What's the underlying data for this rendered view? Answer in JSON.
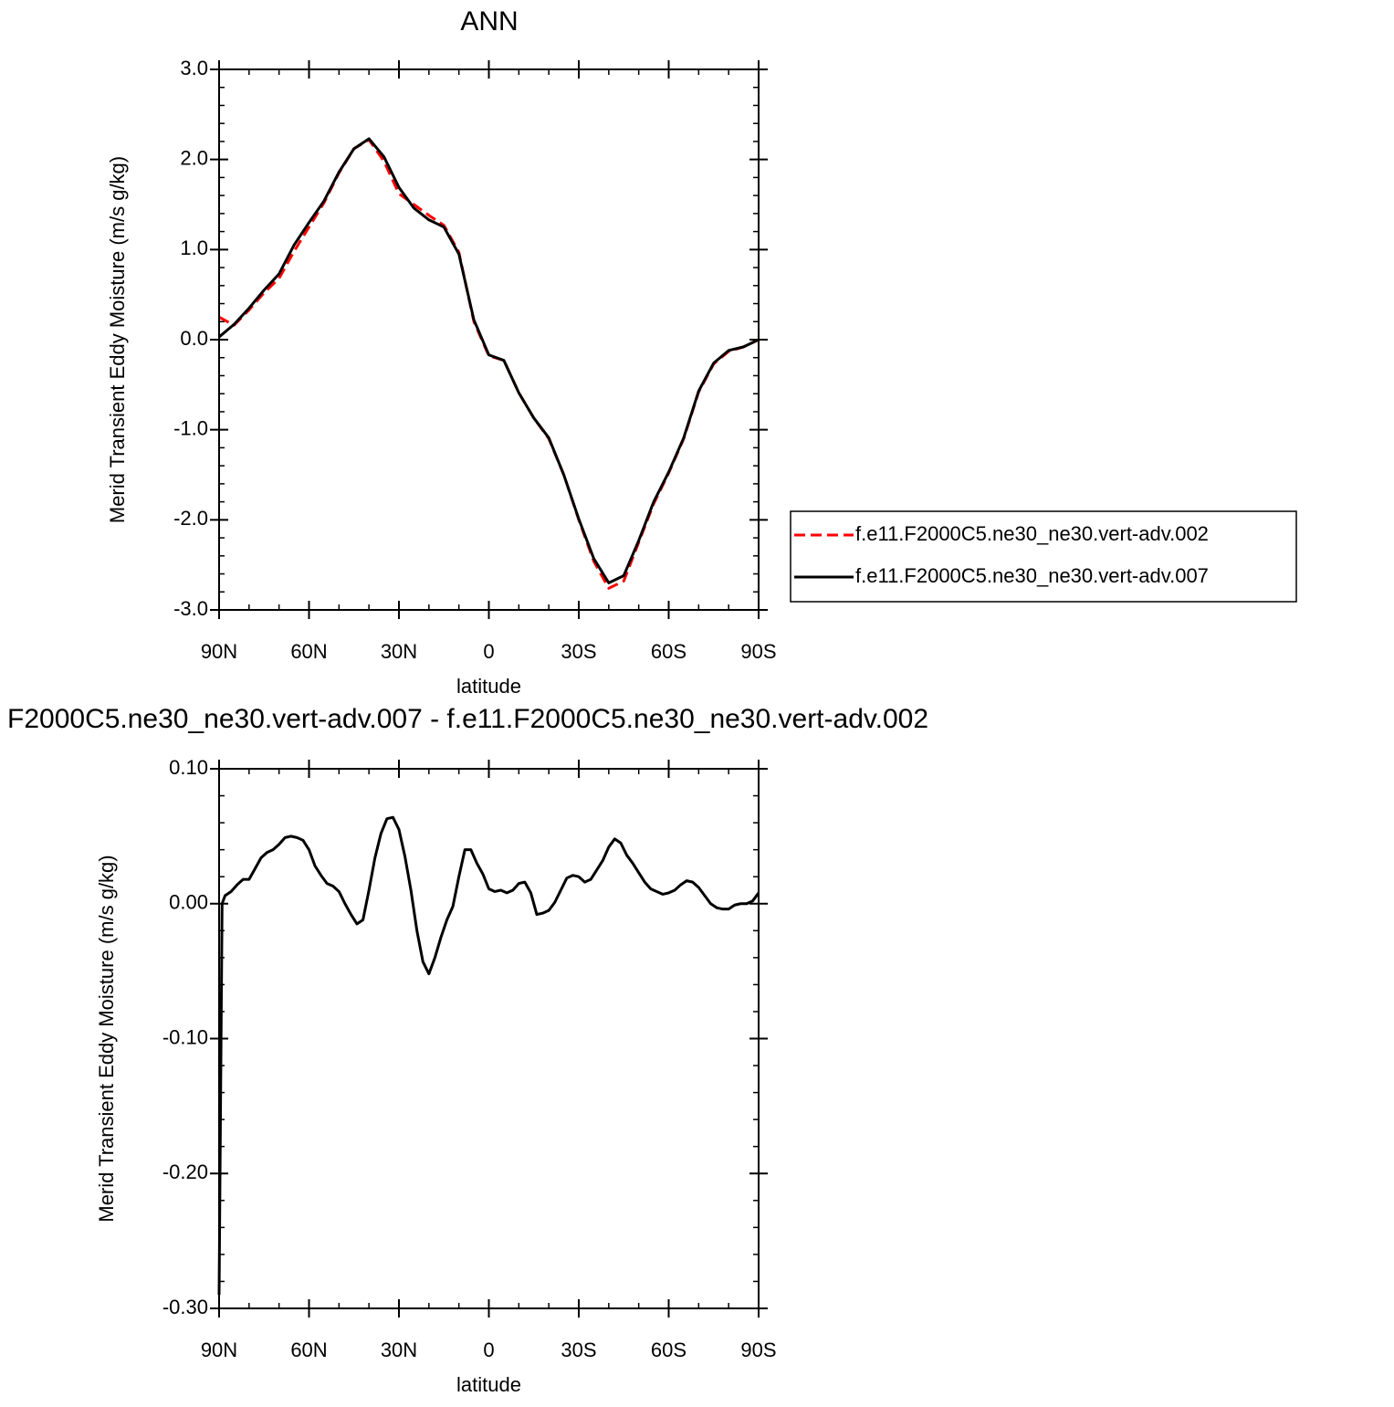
{
  "chart_data": [
    {
      "type": "line",
      "title": "ANN",
      "xlabel": "latitude",
      "ylabel": "Merid Transient Eddy Moisture (m/s g/kg)",
      "x": [
        90,
        85,
        80,
        75,
        70,
        65,
        60,
        55,
        50,
        45,
        40,
        35,
        30,
        25,
        20,
        15,
        10,
        5,
        0,
        -5,
        -10,
        -15,
        -20,
        -25,
        -30,
        -35,
        -40,
        -45,
        -50,
        -55,
        -60,
        -65,
        -70,
        -75,
        -80,
        -85,
        -90
      ],
      "series": [
        {
          "name": "f.e11.F2000C5.ne30_ne30.vert-adv.002",
          "color": "#ff0000",
          "dashed": true,
          "values": [
            0.25,
            0.16,
            0.33,
            0.52,
            0.68,
            0.98,
            1.25,
            1.52,
            1.85,
            2.12,
            2.22,
            1.98,
            1.62,
            1.5,
            1.38,
            1.27,
            0.97,
            0.2,
            -0.18,
            -0.23,
            -0.59,
            -0.87,
            -1.1,
            -1.5,
            -2.0,
            -2.46,
            -2.76,
            -2.68,
            -2.25,
            -1.82,
            -1.48,
            -1.1,
            -0.58,
            -0.27,
            -0.13,
            -0.08,
            0.0
          ]
        },
        {
          "name": "f.e11.F2000C5.ne30_ne30.vert-adv.007",
          "color": "#000000",
          "dashed": false,
          "values": [
            0.03,
            0.17,
            0.35,
            0.55,
            0.73,
            1.05,
            1.3,
            1.54,
            1.86,
            2.12,
            2.23,
            2.03,
            1.69,
            1.46,
            1.33,
            1.25,
            0.95,
            0.22,
            -0.17,
            -0.23,
            -0.59,
            -0.87,
            -1.09,
            -1.5,
            -1.99,
            -2.43,
            -2.7,
            -2.62,
            -2.23,
            -1.8,
            -1.47,
            -1.09,
            -0.57,
            -0.26,
            -0.12,
            -0.08,
            0.0
          ]
        }
      ],
      "xlim": [
        90,
        -90
      ],
      "xticks": [
        {
          "value": 90,
          "label": "90N"
        },
        {
          "value": 60,
          "label": "60N"
        },
        {
          "value": 30,
          "label": "30N"
        },
        0,
        {
          "value": -30,
          "label": "30S"
        },
        {
          "value": -60,
          "label": "60S"
        },
        {
          "value": -90,
          "label": "90S"
        }
      ],
      "ylim": [
        -3,
        3
      ],
      "yticks": [
        {
          "value": 3,
          "label": "3.0"
        },
        {
          "value": 2,
          "label": "2.0"
        },
        {
          "value": 1,
          "label": "1.0"
        },
        {
          "value": 0,
          "label": "0.0"
        },
        {
          "value": -1,
          "label": "-1.0"
        },
        {
          "value": -2,
          "label": "-2.0"
        },
        {
          "value": -3,
          "label": "-3.0"
        }
      ],
      "legend": "right"
    },
    {
      "type": "line",
      "title": "F2000C5.ne30_ne30.vert-adv.007 - f.e11.F2000C5.ne30_ne30.vert-adv.002",
      "xlabel": "latitude",
      "ylabel": "Merid Transient Eddy Moisture (m/s g/kg)",
      "x": [
        90,
        89,
        88,
        86,
        84,
        82,
        80,
        78,
        76,
        74,
        72,
        70,
        68,
        66,
        64,
        62,
        60,
        58,
        56,
        54,
        52,
        50,
        48,
        46,
        44,
        42,
        40,
        38,
        36,
        34,
        32,
        30,
        28,
        26,
        24,
        22,
        20,
        18,
        16,
        14,
        12,
        10,
        8,
        6,
        4,
        2,
        0,
        -2,
        -4,
        -6,
        -8,
        -10,
        -12,
        -14,
        -16,
        -18,
        -20,
        -22,
        -24,
        -26,
        -28,
        -30,
        -32,
        -34,
        -36,
        -38,
        -40,
        -42,
        -44,
        -46,
        -48,
        -50,
        -52,
        -54,
        -56,
        -58,
        -60,
        -62,
        -64,
        -66,
        -68,
        -70,
        -72,
        -74,
        -76,
        -78,
        -80,
        -82,
        -84,
        -86,
        -88,
        -90
      ],
      "series": [
        {
          "color": "#000000",
          "dashed": false,
          "values": [
            -0.29,
            0.0,
            0.006,
            0.009,
            0.014,
            0.018,
            0.018,
            0.026,
            0.034,
            0.038,
            0.04,
            0.044,
            0.049,
            0.05,
            0.049,
            0.047,
            0.04,
            0.028,
            0.021,
            0.015,
            0.013,
            0.009,
            0.0,
            -0.008,
            -0.015,
            -0.012,
            0.01,
            0.034,
            0.052,
            0.063,
            0.064,
            0.055,
            0.035,
            0.01,
            -0.02,
            -0.043,
            -0.052,
            -0.04,
            -0.025,
            -0.012,
            -0.002,
            0.02,
            0.04,
            0.04,
            0.03,
            0.022,
            0.011,
            0.009,
            0.01,
            0.008,
            0.01,
            0.015,
            0.016,
            0.008,
            -0.008,
            -0.007,
            -0.005,
            0.001,
            0.01,
            0.019,
            0.021,
            0.02,
            0.016,
            0.018,
            0.025,
            0.032,
            0.042,
            0.048,
            0.045,
            0.036,
            0.03,
            0.023,
            0.016,
            0.011,
            0.009,
            0.007,
            0.008,
            0.01,
            0.014,
            0.017,
            0.016,
            0.012,
            0.006,
            0.0,
            -0.003,
            -0.004,
            -0.004,
            -0.001,
            0.0,
            0.0,
            0.002,
            0.008
          ]
        }
      ],
      "xlim": [
        90,
        -90
      ],
      "xticks": [
        {
          "value": 90,
          "label": "90N"
        },
        {
          "value": 60,
          "label": "60N"
        },
        {
          "value": 30,
          "label": "30N"
        },
        0,
        {
          "value": -30,
          "label": "30S"
        },
        {
          "value": -60,
          "label": "60S"
        },
        {
          "value": -90,
          "label": "90S"
        }
      ],
      "ylim": [
        -0.3,
        0.1
      ],
      "yticks": [
        {
          "value": 0.1,
          "label": "0.10"
        },
        {
          "value": 0,
          "label": "0.00"
        },
        {
          "value": -0.1,
          "label": "-0.10"
        },
        {
          "value": -0.2,
          "label": "-0.20"
        },
        {
          "value": -0.3,
          "label": "-0.30"
        }
      ]
    }
  ]
}
